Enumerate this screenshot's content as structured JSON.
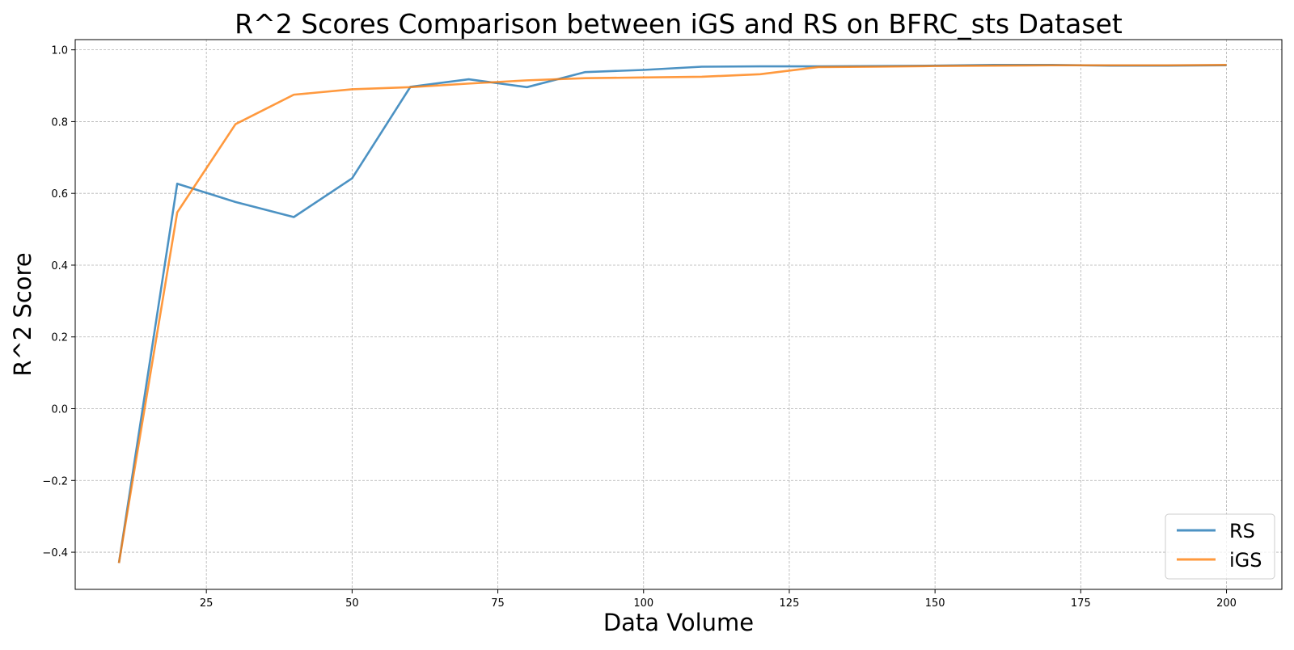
{
  "chart_data": {
    "type": "line",
    "title": "R^2 Scores Comparison between iGS and RS on BFRC_sts Dataset",
    "xlabel": "Data Volume",
    "ylabel": "R^2 Score",
    "x": [
      10,
      20,
      30,
      40,
      50,
      60,
      70,
      80,
      90,
      100,
      110,
      120,
      130,
      140,
      150,
      160,
      170,
      180,
      190,
      200
    ],
    "series": [
      {
        "name": "RS",
        "color": "#1f77b4",
        "values": [
          -0.43,
          0.627,
          0.576,
          0.534,
          0.642,
          0.897,
          0.918,
          0.896,
          0.938,
          0.944,
          0.953,
          0.954,
          0.954,
          0.955,
          0.956,
          0.958,
          0.958,
          0.956,
          0.956,
          0.957
        ]
      },
      {
        "name": "iGS",
        "color": "#ff7f0e",
        "values": [
          -0.43,
          0.547,
          0.793,
          0.875,
          0.89,
          0.896,
          0.906,
          0.915,
          0.921,
          0.923,
          0.925,
          0.932,
          0.952,
          0.953,
          0.955,
          0.956,
          0.957,
          0.957,
          0.957,
          0.958
        ]
      }
    ],
    "xlim": [
      2.5,
      209.5
    ],
    "ylim": [
      -0.5035,
      1.0285
    ],
    "xticks": [
      25,
      50,
      75,
      100,
      125,
      150,
      175,
      200
    ],
    "yticks": [
      -0.4,
      -0.2,
      0.0,
      0.2,
      0.4,
      0.6,
      0.8,
      1.0
    ],
    "xtick_labels": [
      "25",
      "50",
      "75",
      "100",
      "125",
      "150",
      "175",
      "200"
    ],
    "ytick_labels": [
      "−0.4",
      "−0.2",
      "0.0",
      "0.2",
      "0.4",
      "0.6",
      "0.8",
      "1.0"
    ],
    "grid": true,
    "legend": "lower-right"
  }
}
